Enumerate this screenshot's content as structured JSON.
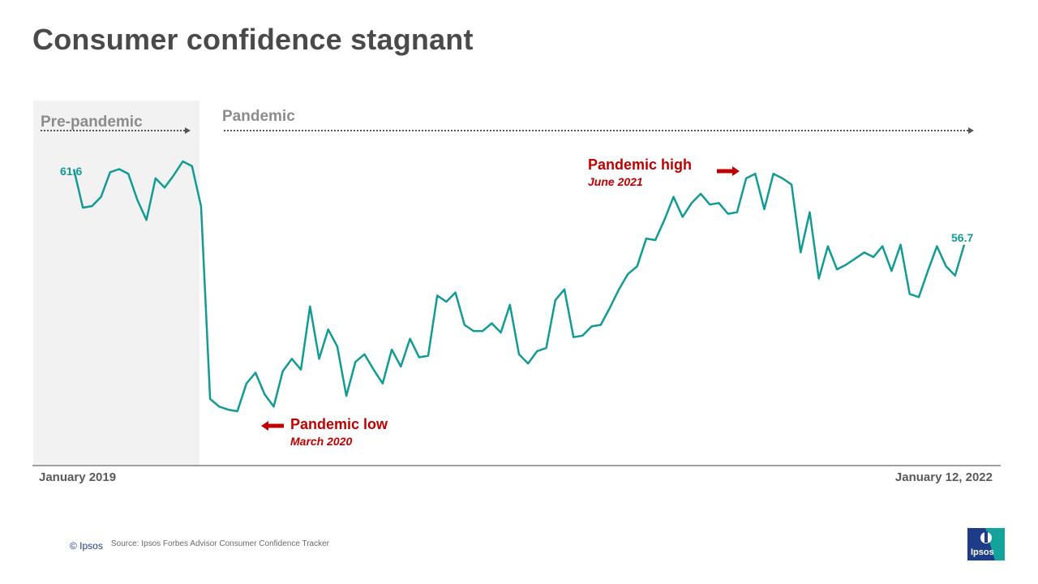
{
  "slide": {
    "title": "Consumer confidence stagnant",
    "periods": {
      "pre": "Pre-pandemic",
      "pandemic": "Pandemic"
    },
    "annotations": {
      "low": {
        "title": "Pandemic low",
        "date": "March 2020"
      },
      "high": {
        "title": "Pandemic high",
        "date": "June 2021"
      }
    },
    "footer": {
      "copyright": "© Ipsos",
      "source": "Source: Ipsos Forbes Advisor Consumer Confidence Tracker"
    },
    "logo_text": "Ipsos",
    "colors": {
      "line": "#129a95",
      "accent": "#c00000",
      "axis": "#808080",
      "shade": "#f2f2f2",
      "title": "#4a4a4a"
    }
  },
  "chart_data": {
    "type": "line",
    "title": "Consumer confidence stagnant",
    "x_start_label": "January 2019",
    "x_end_label": "January 12, 2022",
    "first_value_label": "61.6",
    "last_value_label": "56.7",
    "grid": false,
    "series": [
      {
        "values": [
          61.6,
          59.1,
          59.2,
          59.8,
          61.4,
          61.6,
          61.3,
          59.6,
          58.3,
          61.0,
          60.4,
          61.2,
          62.1,
          61.8,
          59.2,
          46.7,
          46.2,
          46.0,
          45.9,
          47.7,
          48.4,
          47.0,
          46.2,
          48.5,
          49.3,
          48.6,
          52.7,
          49.3,
          51.2,
          50.1,
          46.9,
          49.1,
          49.6,
          48.6,
          47.7,
          49.9,
          48.8,
          50.6,
          49.4,
          49.5,
          53.4,
          53.0,
          53.6,
          51.5,
          51.1,
          51.1,
          51.6,
          51.0,
          52.8,
          49.6,
          49.0,
          49.8,
          50.0,
          53.1,
          53.8,
          50.7,
          50.8,
          51.4,
          51.5,
          52.6,
          53.8,
          54.8,
          55.3,
          57.1,
          57.0,
          58.3,
          59.8,
          58.5,
          59.4,
          60.0,
          59.3,
          59.4,
          58.7,
          58.8,
          61.0,
          61.3,
          59.0,
          61.3,
          61.0,
          60.6,
          56.2,
          58.8,
          54.5,
          56.6,
          55.1,
          55.4,
          55.8,
          56.2,
          55.9,
          56.6,
          55.0,
          56.7,
          53.5,
          53.3,
          55.0,
          56.6,
          55.3,
          54.7,
          56.7
        ]
      }
    ]
  }
}
